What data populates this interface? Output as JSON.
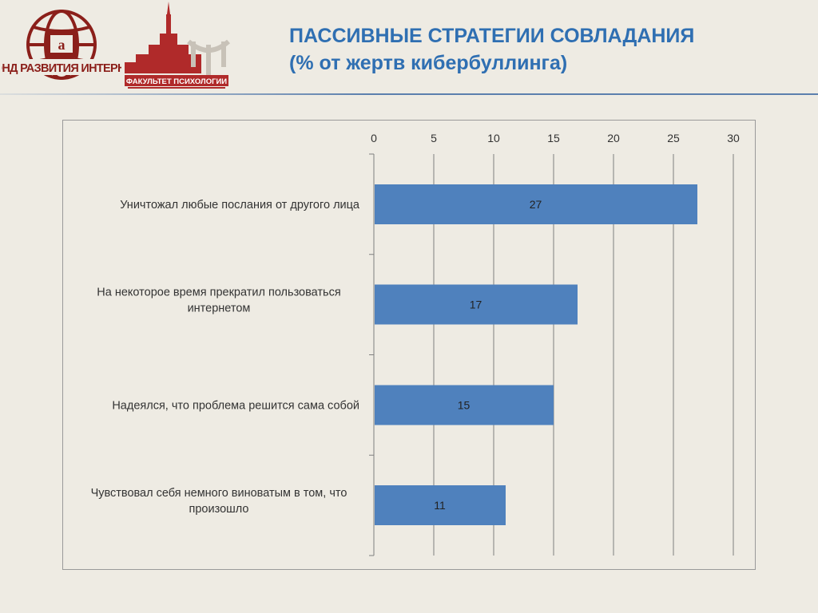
{
  "header": {
    "title_line1": "ПАССИВНЫЕ СТРАТЕГИИ СОВЛАДАНИЯ",
    "title_line2": "(% от жертв кибербуллинга)"
  },
  "logos": {
    "fund_text": "ФОНД РАЗВИТИЯ ИНТЕРНЕТ",
    "faculty_text": "ФАКУЛЬТЕТ ПСИХОЛОГИИ",
    "fund_color": "#8b1f1a",
    "faculty_color": "#b02a2a"
  },
  "chart_data": {
    "type": "bar",
    "orientation": "horizontal",
    "categories": [
      "Уничтожал любые послания от другого лица",
      "На некоторое время прекратил пользоваться интернетом",
      "Надеялся, что проблема решится сама собой",
      "Чувствовал себя немного виноватым в том, что произошло"
    ],
    "category_lines": [
      [
        "Уничтожал любые послания от другого лица"
      ],
      [
        "На некоторое время прекратил пользоваться",
        "интернетом"
      ],
      [
        "Надеялся, что проблема решится сама собой"
      ],
      [
        "Чувствовал себя немного виноватым в том, что",
        "произошло"
      ]
    ],
    "values": [
      27,
      17,
      15,
      11
    ],
    "data_labels": [
      "27",
      "17",
      "15",
      "11"
    ],
    "xlim": [
      0,
      30
    ],
    "ticks": [
      "0",
      "5",
      "10",
      "15",
      "20",
      "25",
      "30"
    ],
    "x_axis_position": "top",
    "grid": true,
    "legend": "none",
    "bar_color": "#4f81bd",
    "title": "",
    "xlabel": "",
    "ylabel": ""
  }
}
